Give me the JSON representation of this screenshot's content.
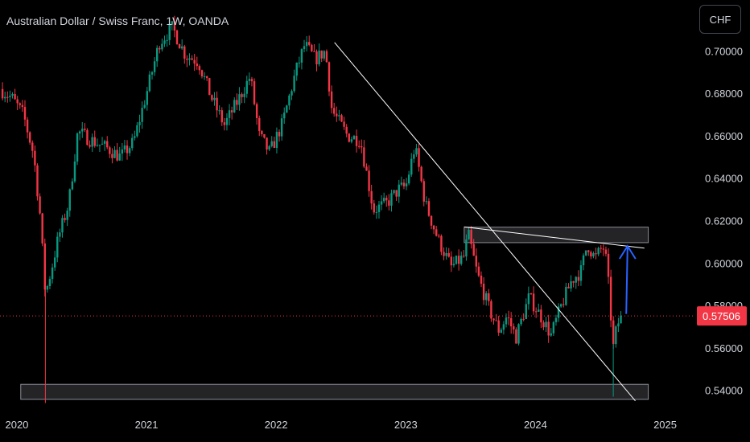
{
  "header": {
    "title": "Australian Dollar / Swiss Franc, 1W, OANDA",
    "currency": "CHF"
  },
  "colors": {
    "up": "#089981",
    "down": "#f23645",
    "background": "#000000",
    "text": "#d1d4dc",
    "trendline": "#ffffff",
    "arrow": "#2962ff",
    "zone": "#2a2a2e",
    "price_tag": "#f23645"
  },
  "chart_data": {
    "type": "candlestick",
    "title": "Australian Dollar / Swiss Franc, 1W, OANDA",
    "ylim": [
      0.53,
      0.724
    ],
    "xlim": [
      2019.87,
      2025.22
    ],
    "y_ticks": [
      "0.70000",
      "0.68000",
      "0.66000",
      "0.64000",
      "0.62000",
      "0.60000",
      "0.58000",
      "0.56000",
      "0.54000"
    ],
    "y_tick_values": [
      0.7,
      0.68,
      0.66,
      0.64,
      0.62,
      0.6,
      0.58,
      0.56,
      0.54
    ],
    "x_ticks": [
      "2020",
      "2021",
      "2022",
      "2023",
      "2024",
      "2025"
    ],
    "x_tick_values": [
      2020,
      2021,
      2022,
      2023,
      2024,
      2025
    ],
    "current_price": {
      "value": 0.57506,
      "label": "0.57506"
    },
    "close_path": [
      [
        2019.87,
        0.682
      ],
      [
        2019.96,
        0.678
      ],
      [
        2020.05,
        0.67
      ],
      [
        2020.13,
        0.651
      ],
      [
        2020.18,
        0.622
      ],
      [
        2020.22,
        0.585
      ],
      [
        2020.27,
        0.598
      ],
      [
        2020.32,
        0.612
      ],
      [
        2020.4,
        0.628
      ],
      [
        2020.47,
        0.662
      ],
      [
        2020.57,
        0.658
      ],
      [
        2020.7,
        0.654
      ],
      [
        2020.8,
        0.65
      ],
      [
        2020.9,
        0.657
      ],
      [
        2021.0,
        0.68
      ],
      [
        2021.1,
        0.704
      ],
      [
        2021.2,
        0.711
      ],
      [
        2021.3,
        0.698
      ],
      [
        2021.4,
        0.695
      ],
      [
        2021.5,
        0.678
      ],
      [
        2021.6,
        0.665
      ],
      [
        2021.7,
        0.676
      ],
      [
        2021.8,
        0.688
      ],
      [
        2021.87,
        0.66
      ],
      [
        2021.95,
        0.652
      ],
      [
        2022.05,
        0.666
      ],
      [
        2022.15,
        0.69
      ],
      [
        2022.22,
        0.703
      ],
      [
        2022.3,
        0.696
      ],
      [
        2022.38,
        0.7
      ],
      [
        2022.43,
        0.672
      ],
      [
        2022.55,
        0.66
      ],
      [
        2022.65,
        0.658
      ],
      [
        2022.75,
        0.625
      ],
      [
        2022.85,
        0.628
      ],
      [
        2022.95,
        0.635
      ],
      [
        2023.0,
        0.636
      ],
      [
        2023.07,
        0.655
      ],
      [
        2023.15,
        0.628
      ],
      [
        2023.25,
        0.611
      ],
      [
        2023.35,
        0.598
      ],
      [
        2023.45,
        0.603
      ],
      [
        2023.48,
        0.614
      ],
      [
        2023.55,
        0.595
      ],
      [
        2023.65,
        0.577
      ],
      [
        2023.72,
        0.568
      ],
      [
        2023.78,
        0.575
      ],
      [
        2023.85,
        0.565
      ],
      [
        2023.95,
        0.584
      ],
      [
        2024.05,
        0.574
      ],
      [
        2024.12,
        0.566
      ],
      [
        2024.2,
        0.58
      ],
      [
        2024.28,
        0.592
      ],
      [
        2024.35,
        0.596
      ],
      [
        2024.4,
        0.609
      ],
      [
        2024.46,
        0.602
      ],
      [
        2024.52,
        0.608
      ],
      [
        2024.55,
        0.6
      ],
      [
        2024.58,
        0.576
      ],
      [
        2024.6,
        0.56
      ],
      [
        2024.63,
        0.571
      ],
      [
        2024.67,
        0.575
      ]
    ],
    "annotations": {
      "trendline_down": [
        [
          2022.45,
          0.704
        ],
        [
          2024.77,
          0.535
        ]
      ],
      "trendline_resistance": [
        [
          2023.45,
          0.617
        ],
        [
          2024.84,
          0.607
        ]
      ],
      "zone_resistance": {
        "x": [
          2023.45,
          2024.87
        ],
        "y": [
          0.6096,
          0.6169
        ]
      },
      "zone_support": {
        "x": [
          2020.03,
          2024.87
        ],
        "y": [
          0.5357,
          0.5428
        ]
      },
      "arrow_up": {
        "from": [
          2024.7,
          0.576
        ],
        "to": [
          2024.71,
          0.608
        ]
      }
    }
  }
}
